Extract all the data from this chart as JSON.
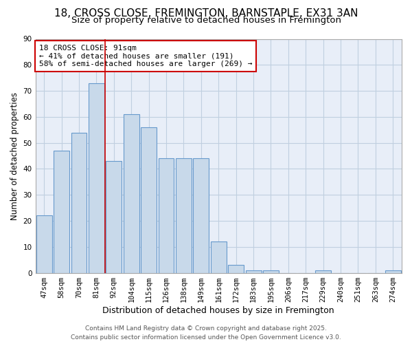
{
  "title_line1": "18, CROSS CLOSE, FREMINGTON, BARNSTAPLE, EX31 3AN",
  "title_line2": "Size of property relative to detached houses in Fremington",
  "xlabel": "Distribution of detached houses by size in Fremington",
  "ylabel": "Number of detached properties",
  "categories": [
    "47sqm",
    "58sqm",
    "70sqm",
    "81sqm",
    "92sqm",
    "104sqm",
    "115sqm",
    "126sqm",
    "138sqm",
    "149sqm",
    "161sqm",
    "172sqm",
    "183sqm",
    "195sqm",
    "206sqm",
    "217sqm",
    "229sqm",
    "240sqm",
    "251sqm",
    "263sqm",
    "274sqm"
  ],
  "values": [
    22,
    47,
    54,
    73,
    43,
    61,
    56,
    44,
    44,
    44,
    12,
    3,
    1,
    1,
    0,
    0,
    1,
    0,
    0,
    0,
    1
  ],
  "bar_color": "#c8d9ea",
  "bar_edge_color": "#6699cc",
  "annotation_line1": "18 CROSS CLOSE: 91sqm",
  "annotation_line2": "← 41% of detached houses are smaller (191)",
  "annotation_line3": "58% of semi-detached houses are larger (269) →",
  "annotation_box_facecolor": "#ffffff",
  "annotation_box_edgecolor": "#cc0000",
  "vline_color": "#cc0000",
  "vline_x": 3.5,
  "ylim": [
    0,
    90
  ],
  "yticks": [
    0,
    10,
    20,
    30,
    40,
    50,
    60,
    70,
    80,
    90
  ],
  "grid_color": "#c0cfe0",
  "background_color": "#ffffff",
  "plot_bg_color": "#e8eef8",
  "footer_line1": "Contains HM Land Registry data © Crown copyright and database right 2025.",
  "footer_line2": "Contains public sector information licensed under the Open Government Licence v3.0.",
  "title_fontsize": 11,
  "subtitle_fontsize": 9.5,
  "xlabel_fontsize": 9,
  "ylabel_fontsize": 8.5,
  "tick_fontsize": 7.5,
  "annotation_fontsize": 8,
  "footer_fontsize": 6.5
}
